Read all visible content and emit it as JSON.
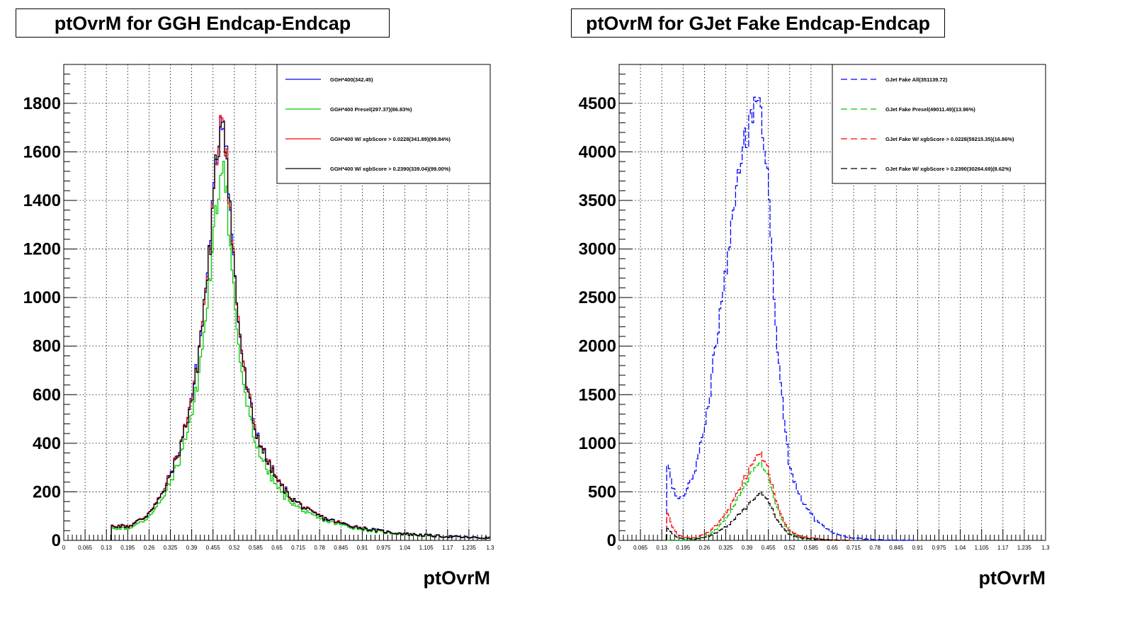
{
  "chart_data": [
    {
      "type": "histogram",
      "title": "ptOvrM for GGH Endcap-Endcap",
      "xlabel": "ptOvrM",
      "ylabel": "",
      "xlim": [
        0,
        1.3
      ],
      "ylim": [
        0,
        1960
      ],
      "x_ticks": [
        "0",
        "0.065",
        "0.13",
        "0.195",
        "0.26",
        "0.325",
        "0.39",
        "0.455",
        "0.52",
        "0.585",
        "0.65",
        "0.715",
        "0.78",
        "0.845",
        "0.91",
        "0.975",
        "1.04",
        "1.105",
        "1.17",
        "1.235",
        "1.3"
      ],
      "y_ticks": [
        0,
        200,
        400,
        600,
        800,
        1000,
        1200,
        1400,
        1600,
        1800
      ],
      "grid": true,
      "legend_position": "top-right",
      "series": [
        {
          "name": "GGH*400(342.45)",
          "color": "#0000ff",
          "style": "solid",
          "x": [
            0.15,
            0.2,
            0.25,
            0.3,
            0.35,
            0.4,
            0.43,
            0.45,
            0.465,
            0.475,
            0.485,
            0.495,
            0.51,
            0.53,
            0.55,
            0.58,
            0.62,
            0.66,
            0.7,
            0.75,
            0.8,
            0.85,
            0.9,
            0.95,
            1.0,
            1.05,
            1.1,
            1.15,
            1.2,
            1.25,
            1.3
          ],
          "values": [
            60,
            60,
            100,
            190,
            360,
            650,
            1000,
            1300,
            1550,
            1720,
            1800,
            1650,
            1300,
            950,
            700,
            480,
            330,
            230,
            170,
            120,
            90,
            70,
            55,
            42,
            33,
            27,
            22,
            18,
            15,
            12,
            10
          ]
        },
        {
          "name": "GGH*400 Presel(297.37)(86.83%)",
          "color": "#00cc00",
          "style": "solid",
          "x": [
            0.15,
            0.2,
            0.25,
            0.3,
            0.35,
            0.4,
            0.43,
            0.45,
            0.465,
            0.475,
            0.485,
            0.495,
            0.51,
            0.53,
            0.55,
            0.58,
            0.62,
            0.66,
            0.7,
            0.75,
            0.8,
            0.85,
            0.9,
            0.95,
            1.0,
            1.05,
            1.1,
            1.15,
            1.2,
            1.25,
            1.3
          ],
          "values": [
            50,
            50,
            85,
            165,
            320,
            570,
            880,
            1130,
            1350,
            1500,
            1620,
            1500,
            1150,
            830,
            610,
            420,
            290,
            200,
            150,
            105,
            80,
            62,
            48,
            37,
            29,
            24,
            19,
            16,
            13,
            11,
            9
          ]
        },
        {
          "name": "GGH*400 W/ xgbScore > 0.0228(341.89)(99.84%)",
          "color": "#ff0000",
          "style": "solid",
          "x": [
            0.15,
            0.2,
            0.25,
            0.3,
            0.35,
            0.4,
            0.43,
            0.45,
            0.465,
            0.475,
            0.485,
            0.495,
            0.51,
            0.53,
            0.55,
            0.58,
            0.62,
            0.66,
            0.7,
            0.75,
            0.8,
            0.85,
            0.9,
            0.95,
            1.0,
            1.05,
            1.1,
            1.15,
            1.2,
            1.25,
            1.3
          ],
          "values": [
            60,
            60,
            100,
            190,
            360,
            648,
            998,
            1298,
            1548,
            1718,
            1798,
            1648,
            1298,
            948,
            698,
            478,
            329,
            229,
            169,
            119,
            89,
            69,
            54,
            41,
            32,
            26,
            21,
            17,
            14,
            11,
            9
          ]
        },
        {
          "name": "GGH*400 W/ xgbScore > 0.2390(339.04)(99.00%)",
          "color": "#000000",
          "style": "solid",
          "x": [
            0.15,
            0.2,
            0.25,
            0.3,
            0.35,
            0.4,
            0.43,
            0.45,
            0.465,
            0.475,
            0.485,
            0.495,
            0.51,
            0.53,
            0.55,
            0.58,
            0.62,
            0.66,
            0.7,
            0.75,
            0.8,
            0.85,
            0.9,
            0.95,
            1.0,
            1.05,
            1.1,
            1.15,
            1.2,
            1.25,
            1.3
          ],
          "values": [
            58,
            58,
            98,
            188,
            355,
            642,
            990,
            1285,
            1535,
            1700,
            1780,
            1630,
            1290,
            940,
            690,
            474,
            326,
            227,
            168,
            118,
            88,
            68,
            53,
            41,
            32,
            26,
            21,
            17,
            14,
            11,
            9
          ]
        }
      ]
    },
    {
      "type": "histogram",
      "title": "ptOvrM for GJet Fake Endcap-Endcap",
      "xlabel": "ptOvrM",
      "ylabel": "",
      "xlim": [
        0,
        1.3
      ],
      "ylim": [
        0,
        4900
      ],
      "x_ticks": [
        "0",
        "0.065",
        "0.13",
        "0.195",
        "0.26",
        "0.325",
        "0.39",
        "0.455",
        "0.52",
        "0.585",
        "0.65",
        "0.715",
        "0.78",
        "0.845",
        "0.91",
        "0.975",
        "1.04",
        "1.105",
        "1.17",
        "1.235",
        "1.3"
      ],
      "y_ticks": [
        0,
        500,
        1000,
        1500,
        2000,
        2500,
        3000,
        3500,
        4000,
        4500
      ],
      "grid": true,
      "legend_position": "top-right",
      "series": [
        {
          "name": "GJet Fake All(351139.72)",
          "color": "#0000ff",
          "style": "dashed",
          "x": [
            0.15,
            0.16,
            0.18,
            0.2,
            0.23,
            0.26,
            0.3,
            0.34,
            0.37,
            0.4,
            0.42,
            0.43,
            0.44,
            0.46,
            0.48,
            0.5,
            0.52,
            0.55,
            0.6,
            0.65,
            0.7,
            0.75,
            0.8,
            0.9
          ],
          "values": [
            820,
            560,
            430,
            470,
            700,
            1150,
            2100,
            3200,
            3900,
            4400,
            4600,
            4550,
            4200,
            3300,
            2100,
            1300,
            750,
            450,
            200,
            80,
            30,
            12,
            5,
            0
          ]
        },
        {
          "name": "GJet Fake Presel(49011.49)(13.96%)",
          "color": "#00cc00",
          "style": "dashed",
          "x": [
            0.15,
            0.16,
            0.18,
            0.2,
            0.23,
            0.26,
            0.3,
            0.34,
            0.37,
            0.4,
            0.42,
            0.43,
            0.44,
            0.46,
            0.48,
            0.5,
            0.52,
            0.55,
            0.6,
            0.65,
            0.7
          ],
          "values": [
            5,
            5,
            5,
            5,
            10,
            30,
            120,
            300,
            480,
            680,
            790,
            800,
            760,
            580,
            360,
            180,
            90,
            40,
            15,
            5,
            0
          ]
        },
        {
          "name": "GJet Fake W/ xgbScore > 0.0228(59215.35)(16.86%)",
          "color": "#ff0000",
          "style": "dashed",
          "x": [
            0.15,
            0.16,
            0.18,
            0.2,
            0.23,
            0.26,
            0.3,
            0.34,
            0.37,
            0.4,
            0.42,
            0.43,
            0.44,
            0.46,
            0.48,
            0.5,
            0.52,
            0.55,
            0.6,
            0.65,
            0.7
          ],
          "values": [
            300,
            150,
            60,
            30,
            30,
            60,
            160,
            360,
            550,
            760,
            880,
            900,
            850,
            650,
            400,
            200,
            100,
            45,
            16,
            5,
            0
          ]
        },
        {
          "name": "GJet Fake W/ xgbScore > 0.2390(30264.69)(8.62%)",
          "color": "#000000",
          "style": "dashed",
          "x": [
            0.15,
            0.16,
            0.18,
            0.2,
            0.23,
            0.26,
            0.3,
            0.34,
            0.37,
            0.4,
            0.42,
            0.43,
            0.44,
            0.46,
            0.48,
            0.5,
            0.52,
            0.55,
            0.6,
            0.65,
            0.7
          ],
          "values": [
            130,
            70,
            30,
            15,
            15,
            30,
            80,
            180,
            280,
            390,
            460,
            490,
            480,
            370,
            230,
            120,
            60,
            28,
            10,
            3,
            0
          ]
        }
      ]
    }
  ]
}
